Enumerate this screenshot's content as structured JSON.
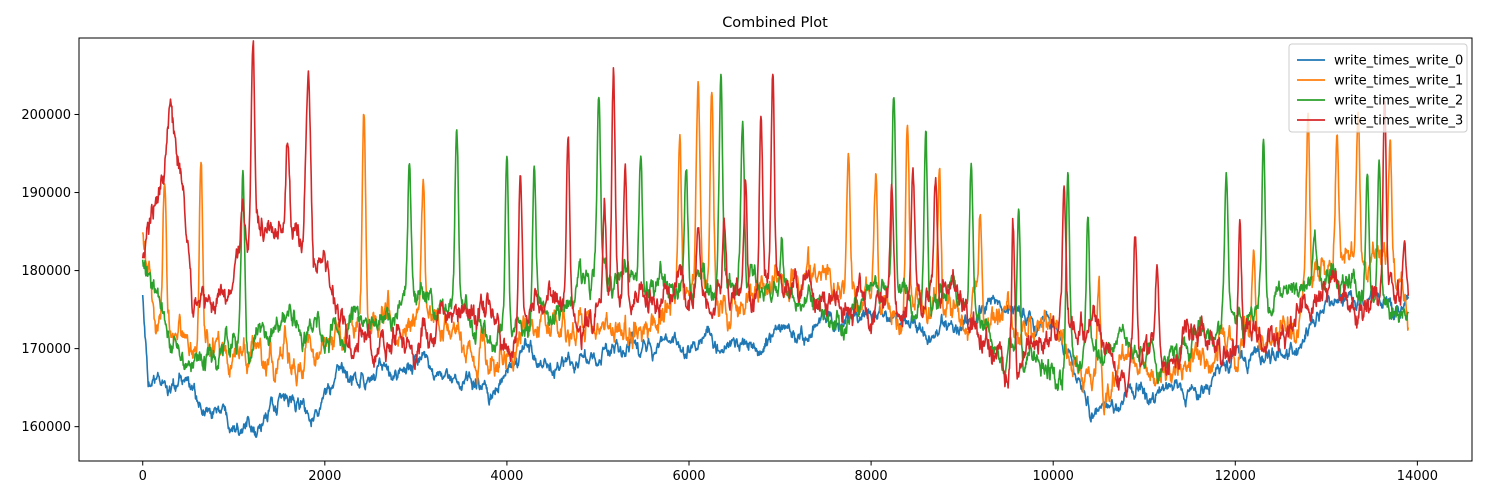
{
  "chart_data": {
    "type": "line",
    "title": "Combined Plot",
    "xlabel": "",
    "ylabel": "",
    "xlim": [
      -700,
      14600
    ],
    "ylim": [
      155600,
      209800
    ],
    "xticks": [
      0,
      2000,
      4000,
      6000,
      8000,
      10000,
      12000,
      14000
    ],
    "xtick_labels": [
      "0",
      "2000",
      "4000",
      "6000",
      "8000",
      "10000",
      "12000",
      "14000"
    ],
    "yticks": [
      160000,
      170000,
      180000,
      190000,
      200000
    ],
    "ytick_labels": [
      "160000",
      "170000",
      "180000",
      "190000",
      "200000"
    ],
    "grid": false,
    "legend": "top-right",
    "x_range": [
      0,
      13900
    ],
    "series": [
      {
        "name": "write_times_write_0",
        "color": "#1f77b4",
        "trend": [
          [
            0,
            177000
          ],
          [
            60,
            165000
          ],
          [
            500,
            166500
          ],
          [
            700,
            162000
          ],
          [
            1500,
            163000
          ],
          [
            1800,
            162500
          ],
          [
            2200,
            165500
          ],
          [
            2600,
            166000
          ],
          [
            3000,
            167500
          ],
          [
            3500,
            165000
          ],
          [
            3700,
            164500
          ],
          [
            4200,
            168500
          ],
          [
            4800,
            168000
          ],
          [
            5400,
            169000
          ],
          [
            5800,
            170500
          ],
          [
            6500,
            171000
          ],
          [
            7000,
            171500
          ],
          [
            7600,
            172500
          ],
          [
            8000,
            173000
          ],
          [
            8600,
            172000
          ],
          [
            9000,
            173500
          ],
          [
            9400,
            175500
          ],
          [
            9800,
            172500
          ],
          [
            10200,
            167500
          ],
          [
            10400,
            162500
          ],
          [
            10700,
            162000
          ],
          [
            11000,
            164500
          ],
          [
            11300,
            163500
          ],
          [
            11600,
            165500
          ],
          [
            12000,
            169500
          ],
          [
            12300,
            171500
          ],
          [
            12500,
            172000
          ],
          [
            12800,
            173500
          ],
          [
            13200,
            175000
          ],
          [
            13500,
            176500
          ],
          [
            13900,
            175000
          ]
        ],
        "noise_amp": 2000,
        "spikes": []
      },
      {
        "name": "write_times_write_1",
        "color": "#ff7f0e",
        "trend": [
          [
            0,
            185000
          ],
          [
            150,
            172000
          ],
          [
            400,
            173000
          ],
          [
            800,
            168500
          ],
          [
            1200,
            171500
          ],
          [
            1600,
            170000
          ],
          [
            2000,
            171000
          ],
          [
            2500,
            172000
          ],
          [
            3000,
            173500
          ],
          [
            3500,
            171500
          ],
          [
            3800,
            168000
          ],
          [
            4200,
            172000
          ],
          [
            4800,
            173000
          ],
          [
            5400,
            172500
          ],
          [
            5700,
            175000
          ],
          [
            6100,
            178000
          ],
          [
            6600,
            176000
          ],
          [
            7000,
            178500
          ],
          [
            7600,
            177500
          ],
          [
            8000,
            176000
          ],
          [
            8600,
            175000
          ],
          [
            9000,
            174500
          ],
          [
            9500,
            173500
          ],
          [
            10000,
            170500
          ],
          [
            10500,
            168000
          ],
          [
            11000,
            170000
          ],
          [
            11600,
            168500
          ],
          [
            12000,
            171000
          ],
          [
            12500,
            173000
          ],
          [
            12800,
            178500
          ],
          [
            13200,
            181000
          ],
          [
            13600,
            179000
          ],
          [
            13900,
            173500
          ]
        ],
        "noise_amp": 3500,
        "spikes": [
          [
            240,
            191000
          ],
          [
            640,
            194500
          ],
          [
            2430,
            199000
          ],
          [
            3080,
            191500
          ],
          [
            5900,
            199000
          ],
          [
            6100,
            203000
          ],
          [
            6250,
            201500
          ],
          [
            7750,
            195000
          ],
          [
            8050,
            192000
          ],
          [
            8400,
            199500
          ],
          [
            8750,
            191500
          ],
          [
            9200,
            186000
          ],
          [
            10500,
            181500
          ],
          [
            12200,
            183000
          ],
          [
            12800,
            196500
          ],
          [
            13120,
            198000
          ],
          [
            13350,
            199000
          ],
          [
            13700,
            192500
          ]
        ]
      },
      {
        "name": "write_times_write_2",
        "color": "#2ca02c",
        "trend": [
          [
            0,
            181000
          ],
          [
            150,
            174500
          ],
          [
            400,
            170500
          ],
          [
            800,
            169000
          ],
          [
            1200,
            172000
          ],
          [
            1600,
            172500
          ],
          [
            2000,
            172000
          ],
          [
            2600,
            172000
          ],
          [
            3000,
            174000
          ],
          [
            3500,
            173500
          ],
          [
            3800,
            170500
          ],
          [
            4200,
            172000
          ],
          [
            4800,
            177000
          ],
          [
            5400,
            178500
          ],
          [
            5800,
            178000
          ],
          [
            6200,
            178500
          ],
          [
            6600,
            177500
          ],
          [
            7000,
            176000
          ],
          [
            7600,
            175500
          ],
          [
            8000,
            177000
          ],
          [
            8600,
            176000
          ],
          [
            9000,
            175000
          ],
          [
            9400,
            169500
          ],
          [
            10000,
            167500
          ],
          [
            10500,
            169000
          ],
          [
            11000,
            168500
          ],
          [
            11600,
            171500
          ],
          [
            12000,
            173500
          ],
          [
            12500,
            177500
          ],
          [
            12900,
            179500
          ],
          [
            13400,
            178500
          ],
          [
            13900,
            174500
          ]
        ],
        "noise_amp": 3000,
        "spikes": [
          [
            1100,
            193000
          ],
          [
            2930,
            192500
          ],
          [
            3450,
            195500
          ],
          [
            4000,
            193500
          ],
          [
            4300,
            193000
          ],
          [
            5010,
            200500
          ],
          [
            5470,
            194500
          ],
          [
            5970,
            194000
          ],
          [
            6350,
            204000
          ],
          [
            6590,
            199500
          ],
          [
            7020,
            183500
          ],
          [
            8250,
            201500
          ],
          [
            8600,
            197500
          ],
          [
            9100,
            194000
          ],
          [
            9620,
            189000
          ],
          [
            10160,
            191500
          ],
          [
            10380,
            187000
          ],
          [
            11900,
            192000
          ],
          [
            12310,
            197000
          ],
          [
            12880,
            183500
          ],
          [
            13450,
            194000
          ],
          [
            13580,
            195000
          ]
        ]
      },
      {
        "name": "write_times_write_3",
        "color": "#d62728",
        "trend": [
          [
            0,
            181000
          ],
          [
            80,
            185500
          ],
          [
            200,
            193500
          ],
          [
            300,
            198500
          ],
          [
            420,
            195000
          ],
          [
            550,
            178000
          ],
          [
            800,
            175500
          ],
          [
            1100,
            182500
          ],
          [
            1400,
            185000
          ],
          [
            1700,
            184500
          ],
          [
            2000,
            181500
          ],
          [
            2300,
            172500
          ],
          [
            2700,
            170500
          ],
          [
            3200,
            171500
          ],
          [
            3800,
            173500
          ],
          [
            4300,
            175000
          ],
          [
            4800,
            175500
          ],
          [
            5400,
            174500
          ],
          [
            6000,
            177000
          ],
          [
            6600,
            178000
          ],
          [
            7000,
            178500
          ],
          [
            7600,
            176500
          ],
          [
            8000,
            176500
          ],
          [
            8600,
            176500
          ],
          [
            9000,
            175500
          ],
          [
            9300,
            170500
          ],
          [
            9800,
            169000
          ],
          [
            10300,
            171000
          ],
          [
            10700,
            168000
          ],
          [
            11200,
            170500
          ],
          [
            11700,
            170500
          ],
          [
            12100,
            169000
          ],
          [
            12400,
            170500
          ],
          [
            12700,
            175000
          ],
          [
            13200,
            176500
          ],
          [
            13600,
            178500
          ],
          [
            13900,
            177000
          ]
        ],
        "noise_amp": 3500,
        "spikes": [
          [
            300,
            202000
          ],
          [
            1100,
            187000
          ],
          [
            1210,
            207500
          ],
          [
            1590,
            195000
          ],
          [
            1800,
            196000
          ],
          [
            1830,
            201500
          ],
          [
            4150,
            196000
          ],
          [
            4670,
            198500
          ],
          [
            5070,
            189000
          ],
          [
            5170,
            205500
          ],
          [
            5300,
            194000
          ],
          [
            6100,
            186500
          ],
          [
            6390,
            188000
          ],
          [
            6620,
            192000
          ],
          [
            6790,
            204000
          ],
          [
            6920,
            205500
          ],
          [
            8230,
            193000
          ],
          [
            8460,
            193500
          ],
          [
            8710,
            191000
          ],
          [
            9560,
            188500
          ],
          [
            10120,
            184500
          ],
          [
            10900,
            184500
          ],
          [
            11140,
            179500
          ],
          [
            12050,
            184000
          ],
          [
            12420,
            164000
          ],
          [
            13640,
            204000
          ],
          [
            13860,
            184500
          ]
        ]
      }
    ]
  }
}
